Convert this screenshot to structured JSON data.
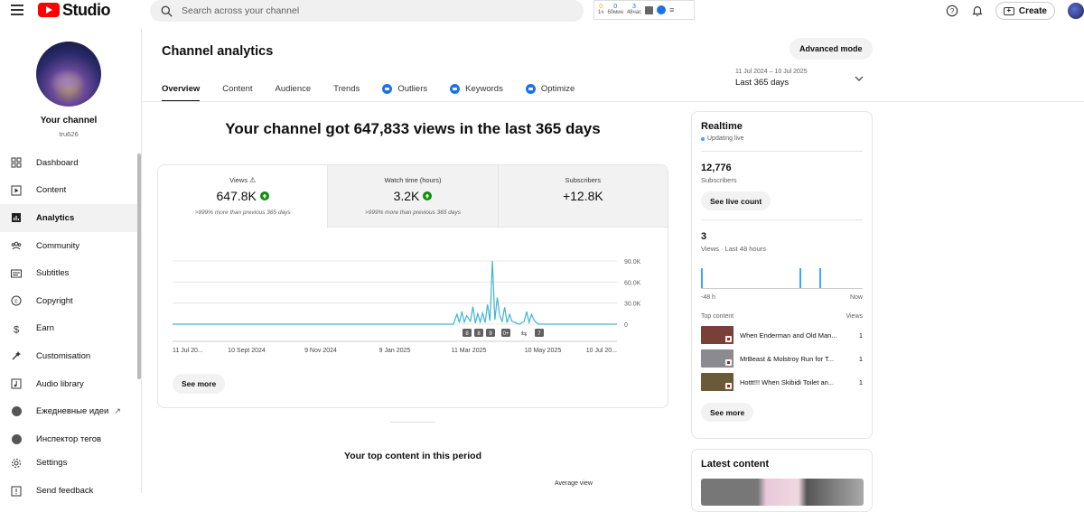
{
  "app": {
    "logo_text": "Studio"
  },
  "search": {
    "placeholder": "Search across your channel"
  },
  "extension_widget": {
    "stats": [
      {
        "value": "0",
        "label": "1ч"
      },
      {
        "value": "0",
        "label": "60мин"
      },
      {
        "value": "3",
        "label": "48час"
      }
    ]
  },
  "header": {
    "create_label": "Create"
  },
  "channel": {
    "name": "Your channel",
    "handle": "tru626"
  },
  "sidebar": {
    "items": [
      {
        "label": "Dashboard",
        "icon": "dashboard-icon"
      },
      {
        "label": "Content",
        "icon": "content-icon"
      },
      {
        "label": "Analytics",
        "icon": "analytics-icon"
      },
      {
        "label": "Community",
        "icon": "community-icon"
      },
      {
        "label": "Subtitles",
        "icon": "subtitles-icon"
      },
      {
        "label": "Copyright",
        "icon": "copyright-icon"
      },
      {
        "label": "Earn",
        "icon": "earn-icon"
      },
      {
        "label": "Customisation",
        "icon": "customisation-icon"
      },
      {
        "label": "Audio library",
        "icon": "audio-library-icon"
      },
      {
        "label": "Ежедневные идеи",
        "icon": "extension-icon"
      },
      {
        "label": "Инспектор тегов",
        "icon": "extension-icon"
      },
      {
        "label": "Settings",
        "icon": "settings-icon"
      },
      {
        "label": "Send feedback",
        "icon": "feedback-icon"
      }
    ]
  },
  "main": {
    "title": "Channel analytics",
    "advanced_mode_label": "Advanced mode",
    "tabs": [
      {
        "label": "Overview"
      },
      {
        "label": "Content"
      },
      {
        "label": "Audience"
      },
      {
        "label": "Trends"
      },
      {
        "label": "Outliers"
      },
      {
        "label": "Keywords"
      },
      {
        "label": "Optimize"
      }
    ],
    "date_range": {
      "dates": "11 Jul 2024 – 10 Jul 2025",
      "label": "Last 365 days"
    },
    "headline": "Your channel got 647,833 views in the last 365 days",
    "metrics": [
      {
        "label": "Views",
        "value": "647.8K",
        "sub": ">999% more than previous 365 days"
      },
      {
        "label": "Watch time (hours)",
        "value": "3.2K",
        "sub": ">999% more than previous 365 days"
      },
      {
        "label": "Subscribers",
        "value": "+12.8K",
        "sub": ""
      }
    ],
    "see_more_label": "See more",
    "top_content_title": "Your top content in this period",
    "average_view_label": "Average view"
  },
  "chart_data": {
    "type": "line",
    "title": "",
    "xlabel": "",
    "ylabel": "",
    "ylim": [
      0,
      90000
    ],
    "y_ticks": [
      "0",
      "30.0K",
      "60.0K",
      "90.0K"
    ],
    "x_tick_labels": [
      "11 Jul 20...",
      "10 Sept 2024",
      "9 Nov 2024",
      "9 Jan 2025",
      "11 Mar 2025",
      "10 May 2025",
      "10 Jul 20..."
    ],
    "x": [
      "2024-07-11",
      "2025-02-26",
      "2025-03-01",
      "2025-03-03",
      "2025-03-05",
      "2025-03-07",
      "2025-03-09",
      "2025-03-12",
      "2025-03-14",
      "2025-03-16",
      "2025-03-18",
      "2025-03-20",
      "2025-03-22",
      "2025-03-24",
      "2025-03-26",
      "2025-03-28",
      "2025-03-30",
      "2025-04-01",
      "2025-04-03",
      "2025-04-05",
      "2025-04-07",
      "2025-04-09",
      "2025-04-11",
      "2025-04-13",
      "2025-04-15",
      "2025-04-17",
      "2025-04-19",
      "2025-04-21",
      "2025-04-25",
      "2025-04-27",
      "2025-04-29",
      "2025-05-01",
      "2025-05-03",
      "2025-05-05",
      "2025-05-07",
      "2025-05-20",
      "2025-07-10"
    ],
    "series": [
      {
        "values": [
          0,
          0,
          14000,
          2000,
          18000,
          3000,
          12000,
          4000,
          25000,
          1500,
          15000,
          3000,
          16000,
          2000,
          28000,
          5000,
          90000,
          6000,
          38000,
          12000,
          4000,
          24000,
          2000,
          14000,
          4000,
          3000,
          1000,
          0,
          4000,
          18000,
          2500,
          14000,
          6000,
          2000,
          0,
          0,
          0
        ]
      }
    ],
    "markers": [
      "8",
      "8",
      "9",
      "0+",
      "7"
    ],
    "grid": true,
    "color": "#41b4d0"
  },
  "realtime": {
    "title": "Realtime",
    "status": "Updating live",
    "subscribers_value": "12,776",
    "subscribers_label": "Subscribers",
    "see_live_count_label": "See live count",
    "views_value": "3",
    "views_label": "Views · Last 48 hours",
    "axis_start": "-48 h",
    "axis_end": "Now",
    "bars": [
      {
        "hour": -48,
        "views": 1
      },
      {
        "hour": -18,
        "views": 1
      },
      {
        "hour": -12,
        "views": 1
      }
    ],
    "top_content_label": "Top content",
    "views_col_label": "Views",
    "items": [
      {
        "title": "When Enderman and Old Man...",
        "views": "1",
        "thumb": "#7a4038"
      },
      {
        "title": "MrBeast & Molstroy Run for T...",
        "views": "1",
        "thumb": "#8a8a90"
      },
      {
        "title": "Hottt!!! When Skibidi Toilet an...",
        "views": "1",
        "thumb": "#6a5a3a"
      }
    ],
    "see_more_label": "See more"
  },
  "latest_content": {
    "title": "Latest content"
  }
}
